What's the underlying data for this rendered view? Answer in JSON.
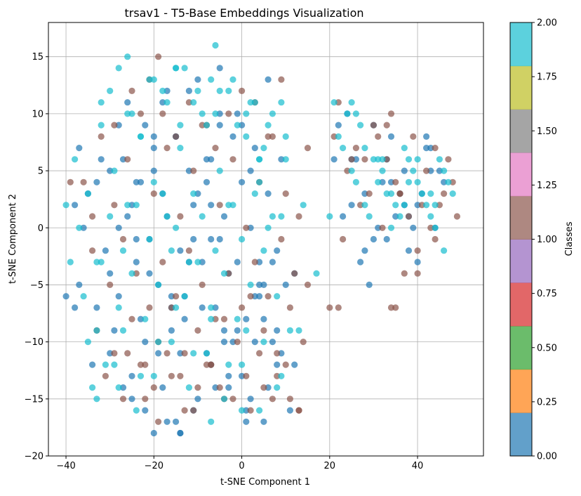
{
  "chart_data": {
    "type": "scatter",
    "title": "trsav1 - T5-Base Embeddings Visualization",
    "xlabel": "t-SNE Component 1",
    "ylabel": "t-SNE Component 2",
    "xlim": [
      -44,
      55
    ],
    "ylim": [
      -20,
      18
    ],
    "xticks": [
      -40,
      -20,
      0,
      20,
      40
    ],
    "xtick_labels": [
      "−40",
      "−20",
      "0",
      "20",
      "40"
    ],
    "yticks": [
      -20,
      -15,
      -10,
      -5,
      0,
      5,
      10,
      15
    ],
    "ytick_labels": [
      "−20",
      "−15",
      "−10",
      "−5",
      "0",
      "5",
      "10",
      "15"
    ],
    "grid": true,
    "alpha": 0.7,
    "colorbar": {
      "label": "Classes",
      "colormap": "tab10",
      "range": [
        0,
        2
      ],
      "ticks": [
        0.0,
        0.25,
        0.5,
        0.75,
        1.0,
        1.25,
        1.5,
        1.75,
        2.0
      ],
      "tick_labels": [
        "0.00",
        "0.25",
        "0.50",
        "0.75",
        "1.00",
        "1.25",
        "1.50",
        "1.75",
        "2.00"
      ],
      "segment_colors": [
        "#1f77b4",
        "#ff7f0e",
        "#2ca02c",
        "#d62728",
        "#9467bd",
        "#8c564b",
        "#e377c2",
        "#7f7f7f",
        "#bcbd22",
        "#17becf"
      ]
    },
    "series": [
      {
        "class_value": 0,
        "color": "#1f77b4",
        "x": [
          -37,
          -33,
          -30,
          -27,
          -25,
          -22,
          -20,
          -18,
          -15,
          -12,
          -10,
          -8,
          -5,
          -2,
          0,
          3,
          6,
          9,
          -36,
          -31,
          -28,
          -24,
          -21,
          -17,
          -14,
          -11,
          -7,
          -4,
          -1,
          2,
          5,
          8,
          -35,
          -30,
          -26,
          -23,
          -19,
          -16,
          -13,
          -9,
          -6,
          -3,
          1,
          4,
          7,
          10,
          -34,
          -29,
          -25,
          -22,
          -18,
          -14,
          -10,
          -7,
          -4,
          0,
          3,
          6,
          9,
          12,
          -38,
          -33,
          -28,
          -24,
          -20,
          -16,
          -12,
          -8,
          -5,
          -1,
          2,
          5,
          8,
          11,
          -32,
          -27,
          -23,
          -19,
          -15,
          -11,
          -7,
          -3,
          1,
          4,
          7,
          -30,
          -26,
          -22,
          -18,
          -14,
          -10,
          -6,
          -2,
          2,
          5,
          -28,
          -24,
          -20,
          -16,
          -12,
          -8,
          -4,
          0,
          4,
          -25,
          -21,
          -17,
          -13,
          -9,
          -5,
          -1,
          3,
          8,
          12,
          -15,
          -11,
          -7,
          -3,
          1,
          22,
          25,
          28,
          31,
          34,
          37,
          40,
          43,
          46,
          23,
          27,
          30,
          33,
          36,
          39,
          42,
          45,
          24,
          28,
          32,
          35,
          38,
          41,
          44,
          26,
          29,
          33,
          37,
          40,
          43,
          21,
          25,
          30,
          34,
          38,
          42,
          -20,
          -14,
          -5,
          -40,
          -38,
          -37,
          -17,
          6
        ],
        "y": [
          7,
          4,
          -4,
          6,
          2,
          9,
          5,
          11,
          8,
          12,
          3,
          6,
          10,
          8,
          4,
          7,
          3,
          6,
          0,
          -2,
          -6,
          -1,
          -4,
          1,
          -2,
          2,
          -1,
          1,
          -3,
          0,
          -5,
          -2,
          3,
          5,
          1,
          -8,
          -5,
          -9,
          -6,
          -3,
          -7,
          -4,
          -8,
          -6,
          -3,
          -5,
          -12,
          -9,
          -13,
          -10,
          -14,
          -11,
          -15,
          -12,
          -9,
          -13,
          -10,
          -14,
          -11,
          -12,
          2,
          -7,
          9,
          -3,
          7,
          -7,
          5,
          -11,
          9,
          -9,
          -15,
          -8,
          -12,
          -16,
          6,
          -14,
          4,
          -11,
          8,
          -16,
          2,
          -13,
          -16,
          -3,
          -10,
          -11,
          11,
          -16,
          3,
          -18,
          13,
          -14,
          -10,
          5,
          -17,
          0,
          4,
          8,
          -6,
          -3,
          4,
          -10,
          9,
          -5,
          -15,
          -1,
          12,
          -8,
          -7,
          -1,
          10,
          -6,
          -9,
          -4,
          -17,
          -1,
          6,
          -14,
          -17,
          9,
          6,
          3,
          0,
          8,
          5,
          2,
          7,
          4,
          1,
          -3,
          9,
          6,
          3,
          0,
          8,
          5,
          10,
          -2,
          4,
          1,
          -2,
          3,
          0,
          6,
          -5,
          -1,
          2,
          -3,
          5,
          6,
          2,
          -1,
          4,
          1,
          7,
          -18,
          -18,
          14,
          -6,
          -7,
          -5,
          -17,
          13
        ]
      },
      {
        "class_value": 1,
        "color": "#8c564b",
        "x": [
          -36,
          -32,
          -29,
          -26,
          -23,
          -20,
          -17,
          -14,
          -11,
          -8,
          -5,
          -2,
          1,
          4,
          7,
          10,
          13,
          -34,
          -30,
          -27,
          -24,
          -21,
          -18,
          -15,
          -12,
          -9,
          -6,
          -3,
          0,
          3,
          6,
          9,
          12,
          15,
          -33,
          -29,
          -25,
          -22,
          -19,
          -16,
          -13,
          -10,
          -7,
          -4,
          -1,
          2,
          5,
          8,
          11,
          14,
          -31,
          -27,
          -23,
          -20,
          -17,
          -14,
          -11,
          -8,
          -5,
          -2,
          1,
          4,
          7,
          10,
          -29,
          -25,
          -21,
          -18,
          -15,
          -12,
          -9,
          -6,
          -3,
          0,
          3,
          6,
          9,
          -26,
          -22,
          -19,
          -16,
          -13,
          -10,
          -7,
          -4,
          2,
          5,
          8,
          11,
          13,
          21,
          24,
          27,
          30,
          33,
          36,
          39,
          42,
          45,
          48,
          22,
          26,
          29,
          32,
          35,
          38,
          41,
          44,
          47,
          23,
          28,
          31,
          34,
          37,
          40,
          43,
          46,
          49,
          20,
          25,
          33,
          36,
          40,
          44,
          13,
          -19,
          -34,
          -39,
          22,
          34,
          35,
          15
        ],
        "y": [
          4,
          8,
          2,
          6,
          10,
          3,
          7,
          1,
          5,
          9,
          2,
          6,
          0,
          4,
          8,
          3,
          1,
          -2,
          -5,
          -1,
          -4,
          -7,
          -3,
          -6,
          -2,
          -5,
          -8,
          -4,
          -7,
          -3,
          -6,
          -1,
          -4,
          -5,
          -9,
          -11,
          -8,
          -12,
          -10,
          -7,
          -11,
          -9,
          -12,
          -8,
          -10,
          -6,
          -9,
          -11,
          -7,
          -10,
          -13,
          -15,
          -12,
          -14,
          -11,
          -13,
          -16,
          -12,
          -14,
          -15,
          -13,
          -11,
          -15,
          -12,
          9,
          12,
          13,
          10,
          8,
          11,
          9,
          7,
          10,
          12,
          11,
          8,
          13,
          -11,
          -15,
          -17,
          -13,
          -16,
          -14,
          -12,
          -15,
          -16,
          -14,
          -13,
          -15,
          -16,
          8,
          5,
          2,
          9,
          6,
          3,
          8,
          5,
          2,
          4,
          11,
          7,
          3,
          0,
          4,
          1,
          2,
          7,
          6,
          -1,
          6,
          8,
          10,
          -4,
          -2,
          0,
          3,
          1,
          -7,
          6,
          9,
          3,
          -4,
          -1,
          -16,
          15,
          1,
          4,
          -7,
          -7,
          -7,
          7
        ]
      },
      {
        "class_value": 2,
        "color": "#17becf",
        "x": [
          -38,
          -35,
          -32,
          -29,
          -26,
          -23,
          -20,
          -17,
          -14,
          -11,
          -8,
          -5,
          -2,
          1,
          4,
          7,
          10,
          -37,
          -33,
          -30,
          -27,
          -24,
          -21,
          -18,
          -15,
          -12,
          -9,
          -6,
          -3,
          0,
          3,
          6,
          9,
          -36,
          -32,
          -28,
          -25,
          -22,
          -19,
          -16,
          -13,
          -10,
          -7,
          -4,
          -1,
          2,
          5,
          8,
          11,
          -35,
          -31,
          -27,
          -23,
          -19,
          -15,
          -11,
          -7,
          -3,
          1,
          5,
          9,
          -33,
          -29,
          -24,
          -20,
          -16,
          -12,
          -8,
          -4,
          0,
          4,
          8,
          -30,
          -26,
          -21,
          -17,
          -13,
          -9,
          -5,
          -1,
          3,
          7,
          -28,
          -23,
          -18,
          -14,
          -10,
          -6,
          -2,
          2,
          6,
          10,
          -25,
          -20,
          -15,
          -11,
          -7,
          -3,
          1,
          5,
          9,
          22,
          25,
          28,
          31,
          34,
          37,
          40,
          43,
          46,
          23,
          26,
          29,
          32,
          35,
          38,
          41,
          44,
          47,
          24,
          27,
          30,
          33,
          36,
          39,
          42,
          45,
          48,
          25,
          28,
          31,
          34,
          37,
          40,
          43,
          46,
          21,
          26,
          32,
          38,
          44,
          -33,
          -28,
          -15,
          -7,
          0,
          4,
          13,
          17,
          20,
          -40,
          -39,
          -34,
          -32,
          -26,
          -6,
          4,
          14
        ],
        "y": [
          6,
          3,
          9,
          5,
          2,
          8,
          4,
          1,
          7,
          3,
          9,
          5,
          2,
          8,
          4,
          1,
          6,
          0,
          -3,
          1,
          -2,
          2,
          -1,
          3,
          0,
          -3,
          1,
          -2,
          2,
          -1,
          3,
          0,
          1,
          -6,
          -3,
          -7,
          -4,
          -8,
          -5,
          -2,
          -6,
          -3,
          -7,
          -4,
          -8,
          -5,
          -2,
          -6,
          -9,
          -10,
          -12,
          -9,
          -13,
          -10,
          -7,
          -11,
          -8,
          -12,
          -9,
          -10,
          -13,
          -15,
          -12,
          -16,
          -13,
          -10,
          -14,
          -11,
          -15,
          -12,
          -16,
          -14,
          12,
          10,
          13,
          11,
          14,
          10,
          12,
          9,
          11,
          10,
          14,
          8,
          12,
          9,
          12,
          10,
          13,
          11,
          9,
          8,
          10,
          13,
          14,
          11,
          13,
          12,
          10,
          7,
          11,
          8,
          5,
          2,
          6,
          3,
          7,
          4,
          1,
          5,
          7,
          4,
          1,
          5,
          2,
          6,
          3,
          0,
          4,
          10,
          9,
          6,
          3,
          1,
          5,
          2,
          6,
          3,
          11,
          7,
          4,
          0,
          2,
          6,
          3,
          -2,
          11,
          10,
          6,
          4,
          2,
          -9,
          -14,
          14,
          -17,
          -16,
          6,
          -9,
          -4,
          1,
          2,
          -3,
          -14,
          11,
          15,
          16,
          6,
          2
        ]
      }
    ]
  }
}
